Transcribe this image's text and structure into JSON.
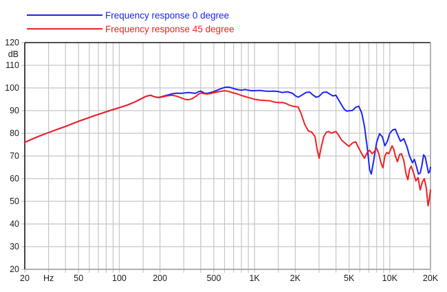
{
  "colors": {
    "series_0deg": "#1a24ee",
    "series_45deg": "#f02020",
    "grid": "#c5c5c5",
    "frame_dark": "#1a1a1a",
    "frame_light": "#999999",
    "text": "#1a1a1a",
    "background": "#ffffff"
  },
  "legend": {
    "items": [
      {
        "label": "Frequency response 0 degree",
        "color_key": "series_0deg"
      },
      {
        "label": "Frequency response 45 degree",
        "color_key": "series_45deg"
      }
    ]
  },
  "chart_data": {
    "type": "line",
    "title": "",
    "xlabel": "Hz",
    "ylabel": "dB",
    "x_scale": "log",
    "xlim": [
      20,
      20000
    ],
    "ylim": [
      20,
      120
    ],
    "grid": true,
    "legend_position": "top-left",
    "y_gridlines": [
      20,
      30,
      40,
      50,
      60,
      70,
      80,
      90,
      100,
      110,
      120
    ],
    "y_tick_labels": [
      "120",
      "110",
      "100",
      "90",
      "80",
      "70",
      "60",
      "50",
      "40",
      "30",
      "20"
    ],
    "y_unit_label": "dB",
    "x_gridlines": [
      20,
      30,
      40,
      50,
      60,
      70,
      80,
      90,
      100,
      150,
      200,
      300,
      400,
      500,
      600,
      700,
      800,
      900,
      1000,
      1500,
      2000,
      3000,
      4000,
      5000,
      6000,
      7000,
      8000,
      9000,
      10000,
      15000,
      20000
    ],
    "x_tick_labels": [
      {
        "f": 20,
        "label": "20"
      },
      {
        "f": 30,
        "label": "Hz"
      },
      {
        "f": 50,
        "label": "50"
      },
      {
        "f": 100,
        "label": "100"
      },
      {
        "f": 200,
        "label": "200"
      },
      {
        "f": 500,
        "label": "500"
      },
      {
        "f": 1000,
        "label": "1K"
      },
      {
        "f": 2000,
        "label": "2K"
      },
      {
        "f": 5000,
        "label": "5K"
      },
      {
        "f": 10000,
        "label": "10K"
      },
      {
        "f": 20000,
        "label": "20K"
      }
    ],
    "series": [
      {
        "name": "Frequency response 0 degree",
        "color_key": "series_0deg",
        "points": [
          [
            20,
            76
          ],
          [
            23,
            77.6
          ],
          [
            26,
            78.9
          ],
          [
            30,
            80.3
          ],
          [
            35,
            81.8
          ],
          [
            40,
            83
          ],
          [
            45,
            84.2
          ],
          [
            50,
            85.3
          ],
          [
            57,
            86.5
          ],
          [
            65,
            87.7
          ],
          [
            75,
            88.9
          ],
          [
            85,
            90
          ],
          [
            100,
            91.3
          ],
          [
            115,
            92.5
          ],
          [
            130,
            93.8
          ],
          [
            145,
            95.2
          ],
          [
            158,
            96.3
          ],
          [
            170,
            96.8
          ],
          [
            182,
            96.1
          ],
          [
            195,
            95.8
          ],
          [
            210,
            96.3
          ],
          [
            225,
            96.8
          ],
          [
            245,
            97.4
          ],
          [
            265,
            97.7
          ],
          [
            285,
            97.6
          ],
          [
            305,
            97.8
          ],
          [
            325,
            98
          ],
          [
            345,
            97.8
          ],
          [
            365,
            97.6
          ],
          [
            385,
            98.3
          ],
          [
            400,
            98.6
          ],
          [
            415,
            98.1
          ],
          [
            430,
            97.6
          ],
          [
            450,
            97.7
          ],
          [
            475,
            98
          ],
          [
            500,
            98.4
          ],
          [
            530,
            99
          ],
          [
            565,
            99.7
          ],
          [
            600,
            100.2
          ],
          [
            640,
            100.4
          ],
          [
            680,
            100
          ],
          [
            720,
            99.5
          ],
          [
            760,
            99.2
          ],
          [
            800,
            99
          ],
          [
            850,
            99.3
          ],
          [
            900,
            99
          ],
          [
            950,
            98.8
          ],
          [
            1000,
            98.8
          ],
          [
            1100,
            98.9
          ],
          [
            1200,
            98.6
          ],
          [
            1300,
            98.5
          ],
          [
            1400,
            98.6
          ],
          [
            1500,
            98.4
          ],
          [
            1600,
            98
          ],
          [
            1750,
            98.3
          ],
          [
            1900,
            97.7
          ],
          [
            2000,
            96.6
          ],
          [
            2100,
            95.9
          ],
          [
            2250,
            96.9
          ],
          [
            2400,
            98
          ],
          [
            2550,
            98.2
          ],
          [
            2700,
            96.9
          ],
          [
            2850,
            95.9
          ],
          [
            3000,
            96.3
          ],
          [
            3200,
            98
          ],
          [
            3400,
            98.2
          ],
          [
            3600,
            97.3
          ],
          [
            3800,
            96.5
          ],
          [
            4000,
            96.8
          ],
          [
            4300,
            93.5
          ],
          [
            4600,
            90.6
          ],
          [
            4800,
            89.8
          ],
          [
            5000,
            89.9
          ],
          [
            5300,
            90.1
          ],
          [
            5600,
            91.5
          ],
          [
            5900,
            91.9
          ],
          [
            6200,
            89
          ],
          [
            6500,
            83
          ],
          [
            6800,
            74
          ],
          [
            7100,
            64
          ],
          [
            7300,
            62
          ],
          [
            7600,
            68
          ],
          [
            8000,
            76
          ],
          [
            8400,
            79.8
          ],
          [
            8800,
            78.5
          ],
          [
            9200,
            74.5
          ],
          [
            9600,
            76.5
          ],
          [
            10000,
            80
          ],
          [
            10500,
            81.5
          ],
          [
            11000,
            81.8
          ],
          [
            11500,
            79
          ],
          [
            12000,
            76.5
          ],
          [
            12700,
            77.6
          ],
          [
            13400,
            74
          ],
          [
            14000,
            70
          ],
          [
            14700,
            67
          ],
          [
            15200,
            68.5
          ],
          [
            15800,
            65
          ],
          [
            16300,
            62
          ],
          [
            16800,
            62.5
          ],
          [
            17300,
            66
          ],
          [
            17800,
            70.5
          ],
          [
            18300,
            69.5
          ],
          [
            18800,
            66
          ],
          [
            19300,
            62.5
          ],
          [
            19700,
            63
          ],
          [
            20000,
            65
          ]
        ]
      },
      {
        "name": "Frequency response 45 degree",
        "color_key": "series_45deg",
        "points": [
          [
            20,
            76
          ],
          [
            23,
            77.6
          ],
          [
            26,
            78.9
          ],
          [
            30,
            80.3
          ],
          [
            35,
            81.8
          ],
          [
            40,
            83
          ],
          [
            45,
            84.2
          ],
          [
            50,
            85.3
          ],
          [
            57,
            86.5
          ],
          [
            65,
            87.7
          ],
          [
            75,
            88.9
          ],
          [
            85,
            90
          ],
          [
            100,
            91.3
          ],
          [
            115,
            92.5
          ],
          [
            130,
            93.8
          ],
          [
            145,
            95.2
          ],
          [
            158,
            96.3
          ],
          [
            170,
            96.8
          ],
          [
            182,
            96.1
          ],
          [
            195,
            95.7
          ],
          [
            210,
            96.1
          ],
          [
            225,
            96.5
          ],
          [
            245,
            96.8
          ],
          [
            265,
            96.4
          ],
          [
            285,
            95.7
          ],
          [
            305,
            95
          ],
          [
            325,
            94.8
          ],
          [
            345,
            95.2
          ],
          [
            365,
            96.1
          ],
          [
            385,
            97.2
          ],
          [
            400,
            97.8
          ],
          [
            420,
            97.5
          ],
          [
            445,
            97.3
          ],
          [
            470,
            97.5
          ],
          [
            500,
            97.9
          ],
          [
            530,
            98.2
          ],
          [
            565,
            98.5
          ],
          [
            600,
            98.8
          ],
          [
            640,
            98.5
          ],
          [
            680,
            98
          ],
          [
            720,
            97.6
          ],
          [
            760,
            97.2
          ],
          [
            800,
            96.7
          ],
          [
            850,
            96.2
          ],
          [
            900,
            95.8
          ],
          [
            950,
            95.4
          ],
          [
            1000,
            95
          ],
          [
            1100,
            94.6
          ],
          [
            1200,
            94.5
          ],
          [
            1300,
            94.3
          ],
          [
            1400,
            93.8
          ],
          [
            1500,
            93.5
          ],
          [
            1600,
            93.6
          ],
          [
            1700,
            93.2
          ],
          [
            1800,
            92.5
          ],
          [
            1900,
            92
          ],
          [
            2000,
            91.8
          ],
          [
            2100,
            91.6
          ],
          [
            2200,
            89
          ],
          [
            2350,
            84
          ],
          [
            2500,
            81
          ],
          [
            2650,
            80.5
          ],
          [
            2800,
            78.5
          ],
          [
            2900,
            73
          ],
          [
            3000,
            69
          ],
          [
            3100,
            73.5
          ],
          [
            3250,
            78.5
          ],
          [
            3400,
            80.5
          ],
          [
            3550,
            80.8
          ],
          [
            3700,
            80
          ],
          [
            3850,
            80.5
          ],
          [
            4000,
            80.8
          ],
          [
            4200,
            79
          ],
          [
            4400,
            77
          ],
          [
            4700,
            75.5
          ],
          [
            5000,
            74.2
          ],
          [
            5300,
            75.8
          ],
          [
            5600,
            76.2
          ],
          [
            5900,
            73.5
          ],
          [
            6200,
            71
          ],
          [
            6500,
            69
          ],
          [
            6800,
            71.5
          ],
          [
            7100,
            72.5
          ],
          [
            7400,
            71
          ],
          [
            7700,
            72
          ],
          [
            8000,
            73.5
          ],
          [
            8300,
            71
          ],
          [
            8600,
            67
          ],
          [
            8900,
            64.8
          ],
          [
            9200,
            70
          ],
          [
            9500,
            71.5
          ],
          [
            9800,
            71
          ],
          [
            10100,
            72.5
          ],
          [
            10400,
            74.5
          ],
          [
            10700,
            73
          ],
          [
            11000,
            70
          ],
          [
            11400,
            67.5
          ],
          [
            11800,
            70.5
          ],
          [
            12200,
            71
          ],
          [
            12700,
            68
          ],
          [
            13200,
            62
          ],
          [
            13600,
            59.5
          ],
          [
            14000,
            64
          ],
          [
            14400,
            65.5
          ],
          [
            15000,
            62.5
          ],
          [
            15600,
            59
          ],
          [
            16200,
            60.5
          ],
          [
            16800,
            55
          ],
          [
            17400,
            58.5
          ],
          [
            18000,
            60
          ],
          [
            18600,
            56
          ],
          [
            19200,
            48
          ],
          [
            19600,
            51
          ],
          [
            20000,
            55
          ]
        ]
      }
    ]
  }
}
